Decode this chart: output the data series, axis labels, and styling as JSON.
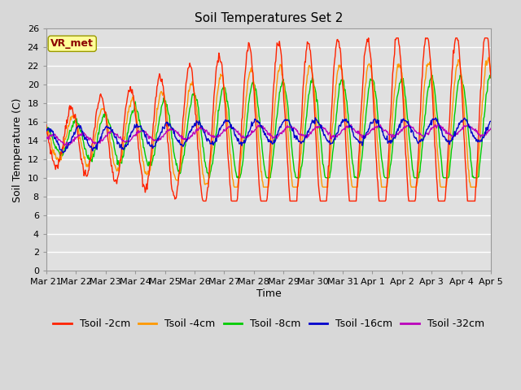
{
  "title": "Soil Temperatures Set 2",
  "xlabel": "Time",
  "ylabel": "Soil Temperature (C)",
  "ylim": [
    0,
    26
  ],
  "yticks": [
    0,
    2,
    4,
    6,
    8,
    10,
    12,
    14,
    16,
    18,
    20,
    22,
    24,
    26
  ],
  "x_labels": [
    "Mar 21",
    "Mar 22",
    "Mar 23",
    "Mar 24",
    "Mar 25",
    "Mar 26",
    "Mar 27",
    "Mar 28",
    "Mar 29",
    "Mar 30",
    "Mar 31",
    "Apr 1",
    "Apr 2",
    "Apr 3",
    "Apr 4",
    "Apr 5"
  ],
  "series_colors": [
    "#ff2200",
    "#ff9900",
    "#00cc00",
    "#0000cc",
    "#bb00bb"
  ],
  "series_labels": [
    "Tsoil -2cm",
    "Tsoil -4cm",
    "Tsoil -8cm",
    "Tsoil -16cm",
    "Tsoil -32cm"
  ],
  "background_color": "#d8d8d8",
  "plot_bg_color": "#e0e0e0",
  "grid_color": "#ffffff",
  "annotation_text": "VR_met",
  "annotation_bg": "#ffff99",
  "annotation_border": "#999900",
  "title_fontsize": 11,
  "axis_label_fontsize": 9,
  "tick_fontsize": 8,
  "legend_fontsize": 9
}
